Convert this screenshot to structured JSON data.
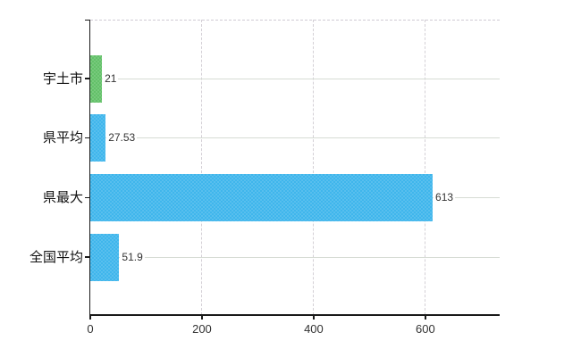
{
  "chart_data": {
    "type": "bar",
    "orientation": "horizontal",
    "title": "",
    "xlabel": "",
    "ylabel": "",
    "categories": [
      "宇土市",
      "県平均",
      "県最大",
      "全国平均"
    ],
    "values": [
      21,
      27.53,
      613,
      51.9
    ],
    "value_labels": [
      "21",
      "27.53",
      "613",
      "51.9"
    ],
    "bar_colors": [
      "#63c169",
      "#3fb6ec",
      "#3fb6ec",
      "#3fb6ec"
    ],
    "x_ticks": [
      0,
      200,
      400,
      600
    ],
    "x_tick_labels": [
      "0",
      "200",
      "400",
      "600"
    ],
    "xlim": [
      0,
      733
    ],
    "grid": true,
    "legend": false
  },
  "colors": {
    "highlight_green": "#63c169",
    "bar_blue": "#3fb6ec",
    "axis": "#1a1a1a",
    "h_grid": "#d6dbd4",
    "v_grid_dashed": "#d4d0d6",
    "top_border_dashed": "#cfcbd4",
    "label_text": "#111111",
    "value_text": "#333333",
    "background": "#ffffff"
  }
}
